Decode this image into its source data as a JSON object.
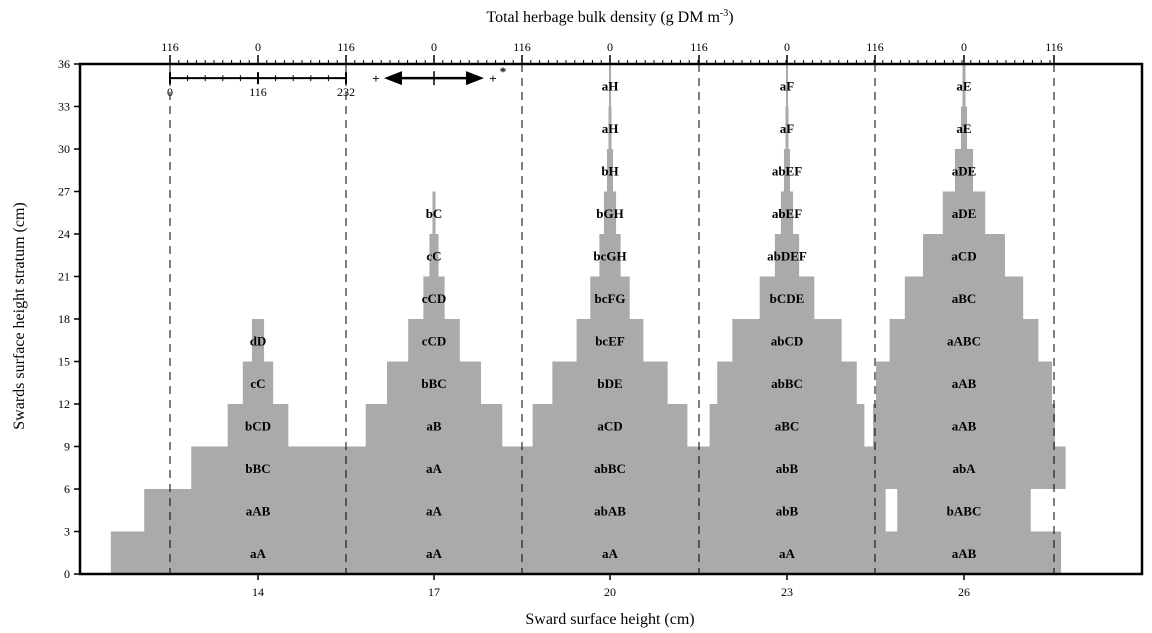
{
  "chart_data": {
    "type": "bar",
    "subtype": "kite-diagram",
    "xlabel": "Sward surface height (cm)",
    "ylabel": "Swards surface height stratum (cm)",
    "top_xlabel": "Total herbage bulk density (g DM m",
    "top_xlabel_sup": "-3",
    "top_xlabel_close": ")",
    "ylim": [
      0,
      36
    ],
    "yticks": [
      "0",
      "3",
      "6",
      "9",
      "12",
      "15",
      "18",
      "21",
      "24",
      "27",
      "30",
      "33",
      "36"
    ],
    "categories": [
      "14",
      "17",
      "20",
      "23",
      "26"
    ],
    "top_ticks": [
      "116",
      "0",
      "116",
      "0",
      "116",
      "0",
      "116",
      "0",
      "116",
      "0",
      "116"
    ],
    "density_scale": {
      "from": "0",
      "mid": "116",
      "to": "232",
      "sig_left": "+",
      "sig_right": "+",
      "sig_mark": "*"
    },
    "groups": [
      {
        "height": "14",
        "strata": [
          {
            "stratum": 0,
            "value": 194,
            "label": "aA"
          },
          {
            "stratum": 3,
            "value": 150,
            "label": "aAB"
          },
          {
            "stratum": 6,
            "value": 88,
            "label": "bBC"
          },
          {
            "stratum": 9,
            "value": 40,
            "label": "bCD"
          },
          {
            "stratum": 12,
            "value": 20,
            "label": "cC"
          },
          {
            "stratum": 15,
            "value": 8,
            "label": "dD"
          }
        ]
      },
      {
        "height": "17",
        "strata": [
          {
            "stratum": 0,
            "value": 194,
            "label": "aA"
          },
          {
            "stratum": 3,
            "value": 164,
            "label": "aA"
          },
          {
            "stratum": 6,
            "value": 158,
            "label": "aA"
          },
          {
            "stratum": 9,
            "value": 90,
            "label": "aB"
          },
          {
            "stratum": 12,
            "value": 62,
            "label": "bBC"
          },
          {
            "stratum": 15,
            "value": 34,
            "label": "cCD"
          },
          {
            "stratum": 18,
            "value": 14,
            "label": "cCD"
          },
          {
            "stratum": 21,
            "value": 6,
            "label": "cC"
          },
          {
            "stratum": 24,
            "value": 2,
            "label": "bC"
          }
        ]
      },
      {
        "height": "20",
        "strata": [
          {
            "stratum": 0,
            "value": 154,
            "label": "aA"
          },
          {
            "stratum": 3,
            "value": 132,
            "label": "abAB"
          },
          {
            "stratum": 6,
            "value": 128,
            "label": "abBC"
          },
          {
            "stratum": 9,
            "value": 102,
            "label": "aCD"
          },
          {
            "stratum": 12,
            "value": 76,
            "label": "bDE"
          },
          {
            "stratum": 15,
            "value": 44,
            "label": "bcEF"
          },
          {
            "stratum": 18,
            "value": 26,
            "label": "bcFG"
          },
          {
            "stratum": 21,
            "value": 14,
            "label": "bcGH"
          },
          {
            "stratum": 24,
            "value": 8,
            "label": "bGH"
          },
          {
            "stratum": 27,
            "value": 4,
            "label": "bH"
          },
          {
            "stratum": 30,
            "value": 2,
            "label": "aH"
          },
          {
            "stratum": 33,
            "value": 1,
            "label": "aH"
          }
        ]
      },
      {
        "height": "23",
        "strata": [
          {
            "stratum": 0,
            "value": 200,
            "label": "aA"
          },
          {
            "stratum": 3,
            "value": 130,
            "label": "abB"
          },
          {
            "stratum": 6,
            "value": 132,
            "label": "abB"
          },
          {
            "stratum": 9,
            "value": 102,
            "label": "aBC"
          },
          {
            "stratum": 12,
            "value": 92,
            "label": "abBC"
          },
          {
            "stratum": 15,
            "value": 72,
            "label": "abCD"
          },
          {
            "stratum": 18,
            "value": 36,
            "label": "bCDE"
          },
          {
            "stratum": 21,
            "value": 16,
            "label": "abDEF"
          },
          {
            "stratum": 24,
            "value": 8,
            "label": "abEF"
          },
          {
            "stratum": 27,
            "value": 4,
            "label": "abEF"
          },
          {
            "stratum": 30,
            "value": 2,
            "label": "aF"
          },
          {
            "stratum": 33,
            "value": 1,
            "label": "aF"
          }
        ]
      },
      {
        "height": "26",
        "strata": [
          {
            "stratum": 0,
            "value": 128,
            "label": "aAB"
          },
          {
            "stratum": 3,
            "value": 88,
            "label": "bABC"
          },
          {
            "stratum": 6,
            "value": 134,
            "label": "abA"
          },
          {
            "stratum": 9,
            "value": 120,
            "label": "aAB"
          },
          {
            "stratum": 12,
            "value": 116,
            "label": "aAB"
          },
          {
            "stratum": 15,
            "value": 98,
            "label": "aABC"
          },
          {
            "stratum": 18,
            "value": 78,
            "label": "aBC"
          },
          {
            "stratum": 21,
            "value": 54,
            "label": "aCD"
          },
          {
            "stratum": 24,
            "value": 28,
            "label": "aDE"
          },
          {
            "stratum": 27,
            "value": 12,
            "label": "aDE"
          },
          {
            "stratum": 30,
            "value": 4,
            "label": "aE"
          },
          {
            "stratum": 33,
            "value": 2,
            "label": "aE"
          }
        ]
      }
    ],
    "colors": {
      "bar": "#aaaaaa",
      "axis": "#000000",
      "guide": "#000000"
    },
    "grid": false,
    "legend": "none"
  }
}
